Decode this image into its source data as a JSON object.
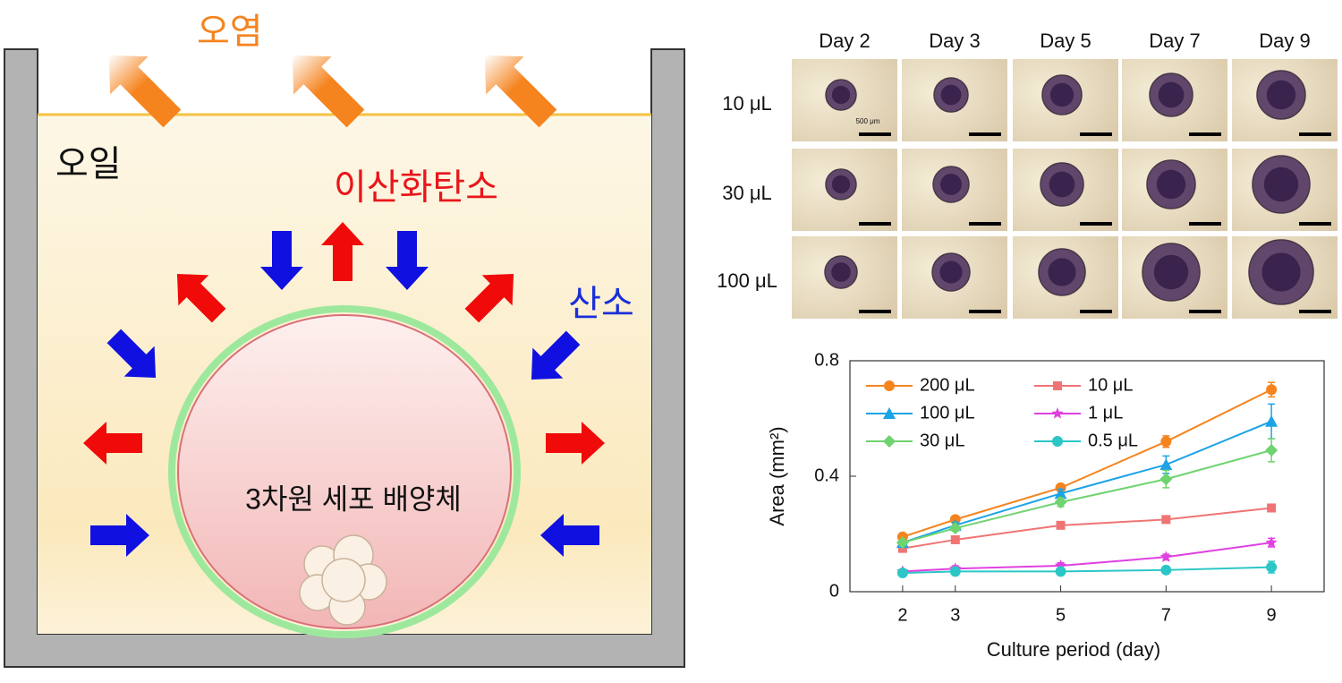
{
  "diagram": {
    "contamination": "오염",
    "oil": "오일",
    "carbon_dioxide": "이산화탄소",
    "oxygen": "산소",
    "culture": "3차원 세포 배양체"
  },
  "images": {
    "columns": [
      "Day 2",
      "Day 3",
      "Day 5",
      "Day 7",
      "Day 9"
    ],
    "rows": [
      "10 μL",
      "30 μL",
      "100 μL"
    ],
    "scale_label": "500 μm"
  },
  "chart_data": {
    "type": "line",
    "xlabel": "Culture period (day)",
    "ylabel": "Area (mm²)",
    "x": [
      2,
      3,
      5,
      7,
      9
    ],
    "xlim": [
      1,
      10
    ],
    "xticks": [
      2,
      3,
      5,
      7,
      9
    ],
    "ylim": [
      0,
      0.8
    ],
    "yticks": [
      0,
      0.4,
      0.8
    ],
    "series": [
      {
        "name": "200 μL",
        "color": "#f5841f",
        "marker": "circle",
        "values": [
          0.19,
          0.25,
          0.36,
          0.52,
          0.7
        ],
        "errors": [
          0.01,
          0.01,
          0.01,
          0.02,
          0.025
        ]
      },
      {
        "name": "10 μL",
        "color": "#f07474",
        "marker": "square",
        "values": [
          0.15,
          0.18,
          0.23,
          0.25,
          0.29
        ],
        "errors": [
          0.01,
          0.01,
          0.01,
          0.01,
          0.01
        ]
      },
      {
        "name": "100 μL",
        "color": "#1ca3e6",
        "marker": "triangle",
        "values": [
          0.17,
          0.23,
          0.34,
          0.44,
          0.59
        ],
        "errors": [
          0.01,
          0.01,
          0.015,
          0.03,
          0.06
        ]
      },
      {
        "name": "1 μL",
        "color": "#e040e0",
        "marker": "star",
        "values": [
          0.07,
          0.08,
          0.09,
          0.12,
          0.17
        ],
        "errors": [
          0.005,
          0.01,
          0.01,
          0.01,
          0.015
        ]
      },
      {
        "name": "30 μL",
        "color": "#6fd36f",
        "marker": "diamond",
        "values": [
          0.17,
          0.22,
          0.31,
          0.39,
          0.49
        ],
        "errors": [
          0.01,
          0.01,
          0.015,
          0.03,
          0.04
        ]
      },
      {
        "name": "0.5 μL",
        "color": "#2cc6c6",
        "marker": "circle",
        "values": [
          0.065,
          0.07,
          0.07,
          0.075,
          0.085
        ],
        "errors": [
          0.005,
          0.01,
          0.005,
          0.01,
          0.02
        ]
      }
    ]
  }
}
